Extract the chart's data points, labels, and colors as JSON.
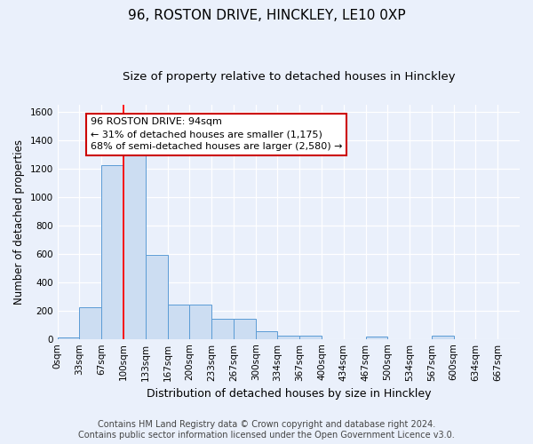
{
  "title1": "96, ROSTON DRIVE, HINCKLEY, LE10 0XP",
  "title2": "Size of property relative to detached houses in Hinckley",
  "xlabel": "Distribution of detached houses by size in Hinckley",
  "ylabel": "Number of detached properties",
  "bin_labels": [
    "0sqm",
    "33sqm",
    "67sqm",
    "100sqm",
    "133sqm",
    "167sqm",
    "200sqm",
    "233sqm",
    "267sqm",
    "300sqm",
    "334sqm",
    "367sqm",
    "400sqm",
    "434sqm",
    "467sqm",
    "500sqm",
    "534sqm",
    "567sqm",
    "600sqm",
    "634sqm",
    "667sqm"
  ],
  "bar_values": [
    10,
    220,
    1225,
    1300,
    590,
    240,
    240,
    140,
    140,
    55,
    25,
    20,
    0,
    0,
    15,
    0,
    0,
    20,
    0,
    0,
    0
  ],
  "bar_color": "#ccddf2",
  "bar_edge_color": "#5b9bd5",
  "bar_width": 1.0,
  "ylim": [
    0,
    1650
  ],
  "yticks": [
    0,
    200,
    400,
    600,
    800,
    1000,
    1200,
    1400,
    1600
  ],
  "red_line_x": 3.0,
  "annotation_text": "96 ROSTON DRIVE: 94sqm\n← 31% of detached houses are smaller (1,175)\n68% of semi-detached houses are larger (2,580) →",
  "annotation_box_color": "#ffffff",
  "annotation_box_edge": "#cc0000",
  "bg_color": "#eaf0fb",
  "footer_text": "Contains HM Land Registry data © Crown copyright and database right 2024.\nContains public sector information licensed under the Open Government Licence v3.0.",
  "title1_fontsize": 11,
  "title2_fontsize": 9.5,
  "xlabel_fontsize": 9,
  "ylabel_fontsize": 8.5,
  "tick_fontsize": 7.5,
  "annotation_fontsize": 8,
  "footer_fontsize": 7
}
